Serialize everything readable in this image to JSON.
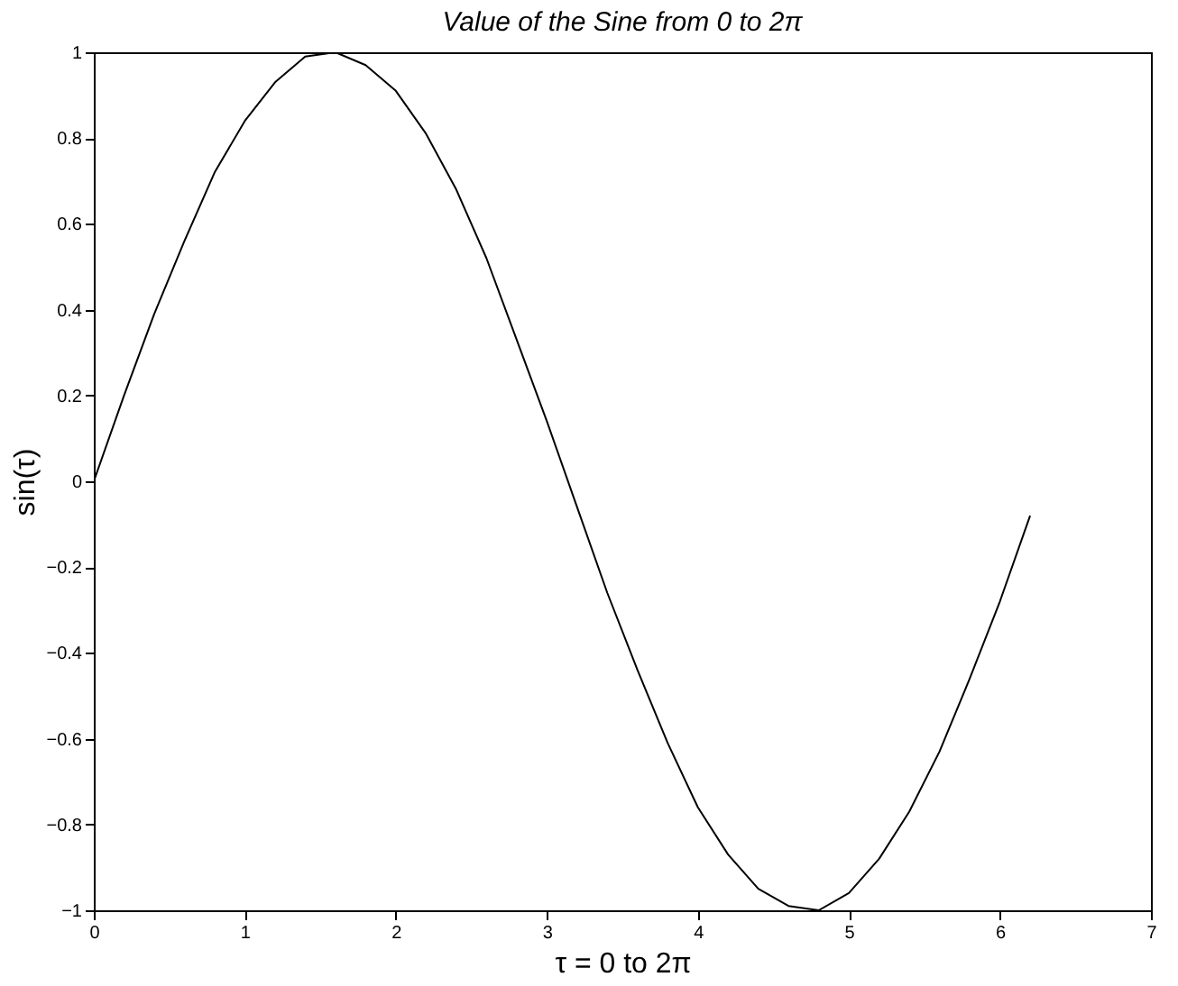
{
  "chart_data": {
    "type": "line",
    "title": "Value of the Sine from 0 to 2π",
    "xlabel": "τ = 0 to 2π",
    "ylabel": "sin(τ)",
    "x": [
      0,
      0.2,
      0.4,
      0.6,
      0.8,
      1.0,
      1.2,
      1.4,
      1.6,
      1.8,
      2.0,
      2.2,
      2.4,
      2.6,
      2.8,
      3.0,
      3.2,
      3.4,
      3.6,
      3.8,
      4.0,
      4.2,
      4.4,
      4.6,
      4.8,
      5.0,
      5.2,
      5.4,
      5.6,
      5.8,
      6.0,
      6.2
    ],
    "series": [
      {
        "color": "#000000",
        "values": [
          0,
          0.2,
          0.39,
          0.56,
          0.72,
          0.84,
          0.93,
          0.99,
          1.0,
          0.97,
          0.91,
          0.81,
          0.68,
          0.52,
          0.33,
          0.14,
          -0.06,
          -0.26,
          -0.44,
          -0.61,
          -0.76,
          -0.87,
          -0.95,
          -0.99,
          -1.0,
          -0.96,
          -0.88,
          -0.77,
          -0.63,
          -0.46,
          -0.28,
          -0.08
        ]
      }
    ],
    "xlim": [
      0,
      7
    ],
    "xticks": [
      0,
      1,
      2,
      3,
      4,
      5,
      6,
      7
    ],
    "ylim": [
      -1,
      1
    ],
    "yticks": [
      -1,
      -0.8,
      -0.6,
      -0.4,
      -0.2,
      0,
      0.2,
      0.4,
      0.6,
      0.8,
      1
    ],
    "grid": false,
    "marker": "none",
    "line_style": "solid"
  }
}
